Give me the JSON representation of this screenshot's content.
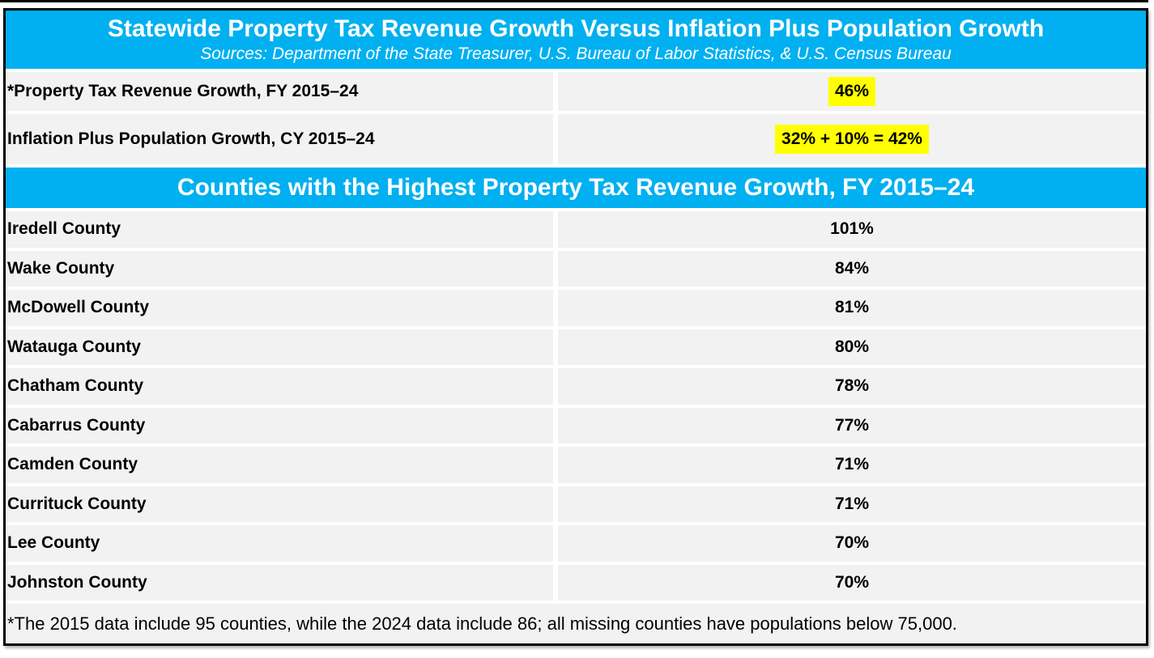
{
  "table": {
    "header": {
      "title": "Statewide Property Tax Revenue Growth Versus Inflation Plus Population Growth",
      "subtitle": "Sources: Department of the State Treasurer, U.S. Bureau of Labor Statistics, & U.S. Census Bureau"
    },
    "summary_rows": [
      {
        "label": "*Property Tax Revenue Growth, FY 2015–24",
        "value": "46%",
        "highlighted": true
      },
      {
        "label": "Inflation Plus Population Growth, CY 2015–24",
        "value": "32% + 10% = 42%",
        "highlighted": true
      }
    ],
    "section_header": "Counties with the Highest Property Tax Revenue Growth, FY 2015–24",
    "county_rows": [
      {
        "label": "Iredell County",
        "value": "101%"
      },
      {
        "label": "Wake County",
        "value": "84%"
      },
      {
        "label": "McDowell County",
        "value": "81%"
      },
      {
        "label": "Watauga County",
        "value": "80%"
      },
      {
        "label": "Chatham County",
        "value": "78%"
      },
      {
        "label": "Cabarrus County",
        "value": "77%"
      },
      {
        "label": "Camden County",
        "value": "71%"
      },
      {
        "label": "Currituck County",
        "value": "71%"
      },
      {
        "label": "Lee County",
        "value": "70%"
      },
      {
        "label": "Johnston County",
        "value": "70%"
      }
    ],
    "footnote": "*The 2015 data include 95 counties, while the 2024 data include 86; all missing counties have populations below 75,000."
  },
  "colors": {
    "header_blue": "#00B0F0",
    "highlight_yellow": "#FFFF00",
    "row_gray": "#F2F2F2",
    "border_black": "#000000",
    "text_white": "#FFFFFF",
    "text_black": "#000000"
  },
  "chart_data": {
    "type": "table",
    "title": "Statewide Property Tax Revenue Growth Versus Inflation Plus Population Growth",
    "subtitle": "Sources: Department of the State Treasurer, U.S. Bureau of Labor Statistics, & U.S. Census Bureau",
    "statewide_summary": [
      {
        "metric": "Property Tax Revenue Growth, FY 2015–24",
        "value_pct": 46
      },
      {
        "metric": "Inflation Plus Population Growth, CY 2015–24",
        "inflation_pct": 32,
        "population_pct": 10,
        "total_pct": 42
      }
    ],
    "section_title": "Counties with the Highest Property Tax Revenue Growth, FY 2015–24",
    "categories": [
      "Iredell County",
      "Wake County",
      "McDowell County",
      "Watauga County",
      "Chatham County",
      "Cabarrus County",
      "Camden County",
      "Currituck County",
      "Lee County",
      "Johnston County"
    ],
    "values_pct": [
      101,
      84,
      81,
      80,
      78,
      77,
      71,
      71,
      70,
      70
    ],
    "footnote": "*The 2015 data include 95 counties, while the 2024 data include 86; all missing counties have populations below 75,000."
  }
}
